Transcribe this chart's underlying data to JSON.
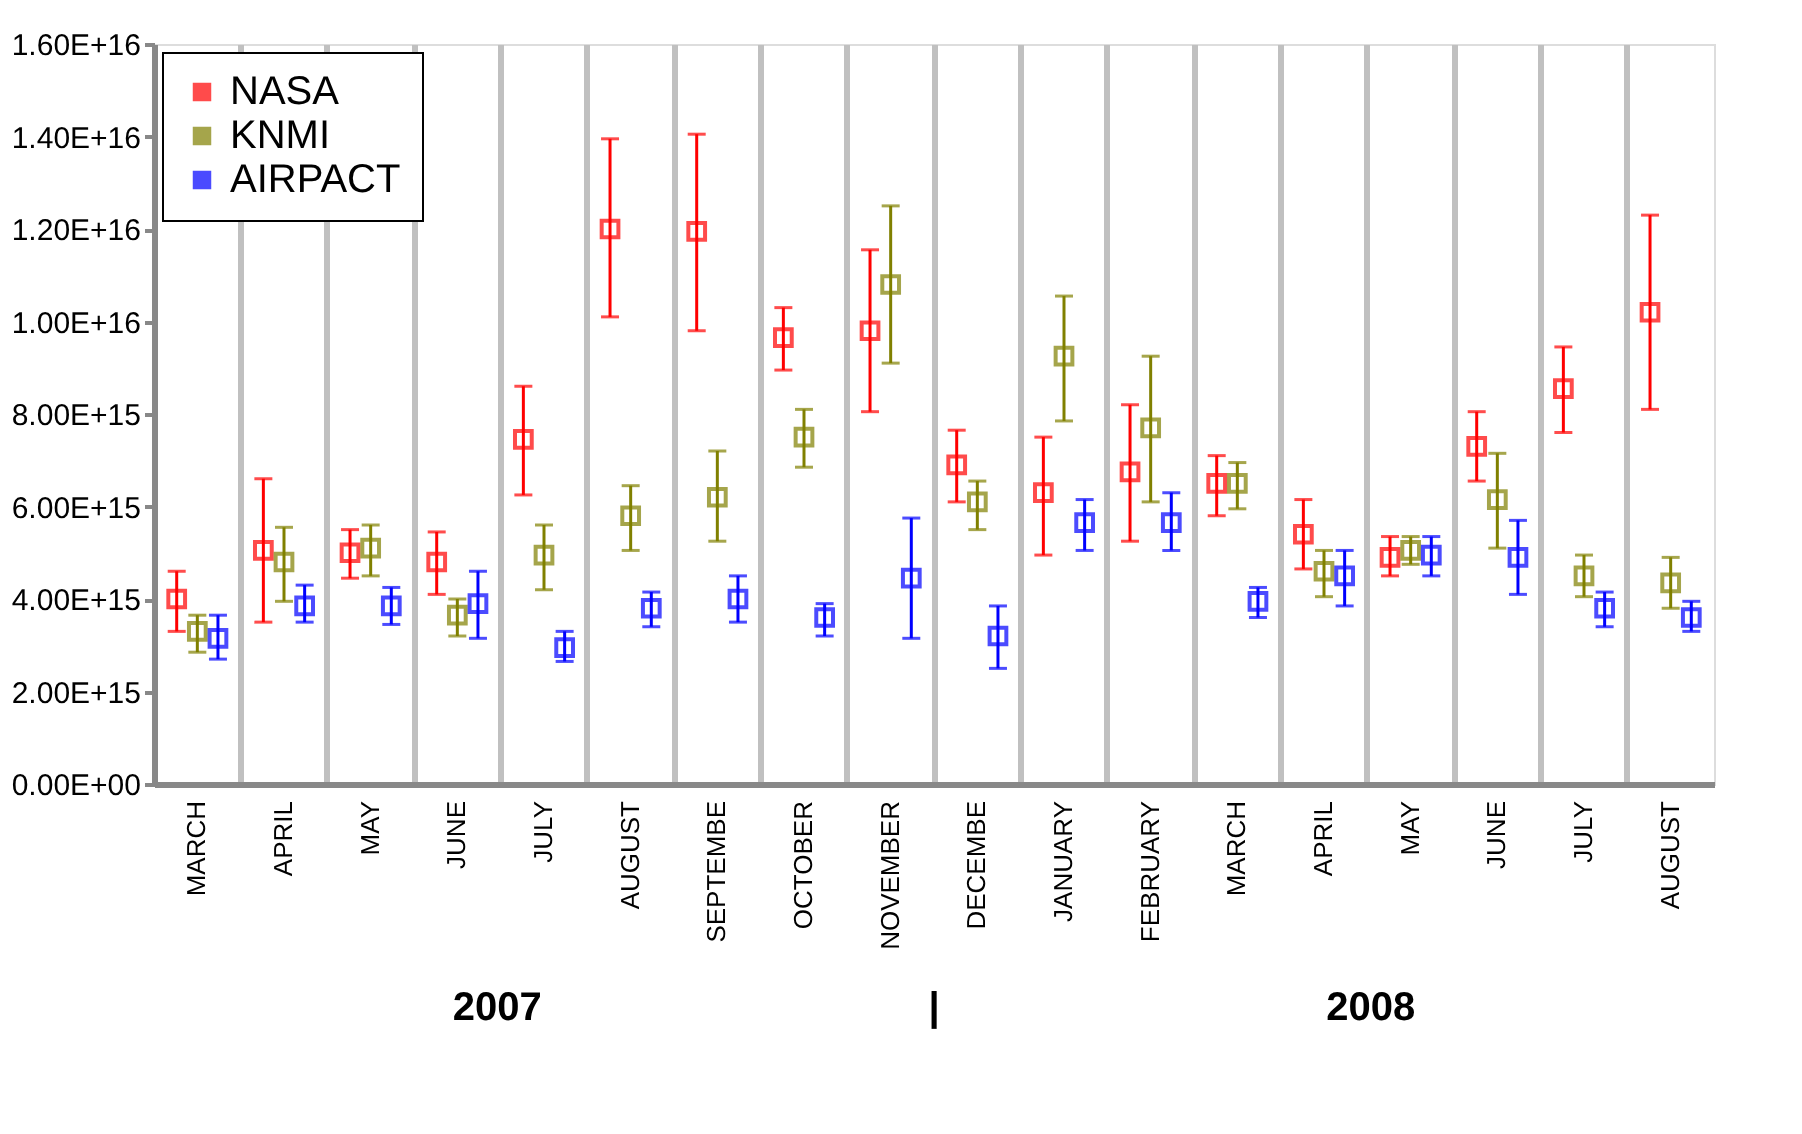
{
  "chart_data": {
    "type": "scatter",
    "categories": [
      "MARCH",
      "APRIL",
      "MAY",
      "JUNE",
      "JULY",
      "AUGUST",
      "SEPTEMBE",
      "OCTOBER",
      "NOVEMBER",
      "DECEMBE",
      "JANUARY",
      "FEBRUARY",
      "MARCH",
      "APRIL",
      "MAY",
      "JUNE",
      "JULY",
      "AUGUST"
    ],
    "series": [
      {
        "name": "NASA",
        "color": "#ff0000",
        "values": [
          4000000000000000.0,
          5050000000000000.0,
          5000000000000000.0,
          4800000000000000.0,
          7450000000000000.0,
          1.2e+16,
          1.195e+16,
          9650000000000000.0,
          9800000000000000.0,
          6900000000000000.0,
          6300000000000000.0,
          6750000000000000.0,
          6500000000000000.0,
          5400000000000000.0,
          4900000000000000.0,
          7300000000000000.0,
          8550000000000000.0,
          1.02e+16
        ],
        "errors": [
          [
            3300000000000000.0,
            4600000000000000.0
          ],
          [
            3500000000000000.0,
            6600000000000000.0
          ],
          [
            4450000000000000.0,
            5500000000000000.0
          ],
          [
            4100000000000000.0,
            5450000000000000.0
          ],
          [
            6250000000000000.0,
            8600000000000000.0
          ],
          [
            1.01e+16,
            1.395e+16
          ],
          [
            9800000000000000.0,
            1.405e+16
          ],
          [
            8950000000000000.0,
            1.03e+16
          ],
          [
            8050000000000000.0,
            1.155e+16
          ],
          [
            6100000000000000.0,
            7650000000000000.0
          ],
          [
            4950000000000000.0,
            7500000000000000.0
          ],
          [
            5250000000000000.0,
            8200000000000000.0
          ],
          [
            5800000000000000.0,
            7100000000000000.0
          ],
          [
            4650000000000000.0,
            6150000000000000.0
          ],
          [
            4500000000000000.0,
            5350000000000000.0
          ],
          [
            6550000000000000.0,
            8050000000000000.0
          ],
          [
            7600000000000000.0,
            9450000000000000.0
          ],
          [
            8100000000000000.0,
            1.23e+16
          ]
        ]
      },
      {
        "name": "KNMI",
        "color": "#808000",
        "values": [
          3300000000000000.0,
          4800000000000000.0,
          5100000000000000.0,
          3650000000000000.0,
          4950000000000000.0,
          5800000000000000.0,
          6200000000000000.0,
          7500000000000000.0,
          1.08e+16,
          6100000000000000.0,
          9250000000000000.0,
          7700000000000000.0,
          6500000000000000.0,
          4600000000000000.0,
          5050000000000000.0,
          6150000000000000.0,
          4500000000000000.0,
          4350000000000000.0
        ],
        "errors": [
          [
            2850000000000000.0,
            3650000000000000.0
          ],
          [
            3950000000000000.0,
            5550000000000000.0
          ],
          [
            4500000000000000.0,
            5600000000000000.0
          ],
          [
            3200000000000000.0,
            4000000000000000.0
          ],
          [
            4200000000000000.0,
            5600000000000000.0
          ],
          [
            5050000000000000.0,
            6450000000000000.0
          ],
          [
            5250000000000000.0,
            7200000000000000.0
          ],
          [
            6850000000000000.0,
            8100000000000000.0
          ],
          [
            9100000000000000.0,
            1.25e+16
          ],
          [
            5500000000000000.0,
            6550000000000000.0
          ],
          [
            7850000000000000.0,
            1.055e+16
          ],
          [
            6100000000000000.0,
            9250000000000000.0
          ],
          [
            5950000000000000.0,
            6950000000000000.0
          ],
          [
            4050000000000000.0,
            5050000000000000.0
          ],
          [
            4750000000000000.0,
            5350000000000000.0
          ],
          [
            5100000000000000.0,
            7150000000000000.0
          ],
          [
            4050000000000000.0,
            4950000000000000.0
          ],
          [
            3800000000000000.0,
            4900000000000000.0
          ]
        ]
      },
      {
        "name": "AIRPACT",
        "color": "#0000ff",
        "values": [
          3150000000000000.0,
          3850000000000000.0,
          3850000000000000.0,
          3900000000000000.0,
          2950000000000000.0,
          3800000000000000.0,
          4000000000000000.0,
          3600000000000000.0,
          4450000000000000.0,
          3200000000000000.0,
          5650000000000000.0,
          5650000000000000.0,
          3950000000000000.0,
          4500000000000000.0,
          4950000000000000.0,
          4900000000000000.0,
          3800000000000000.0,
          3600000000000000.0
        ],
        "errors": [
          [
            2700000000000000.0,
            3650000000000000.0
          ],
          [
            3500000000000000.0,
            4300000000000000.0
          ],
          [
            3450000000000000.0,
            4250000000000000.0
          ],
          [
            3150000000000000.0,
            4600000000000000.0
          ],
          [
            2650000000000000.0,
            3300000000000000.0
          ],
          [
            3400000000000000.0,
            4150000000000000.0
          ],
          [
            3500000000000000.0,
            4500000000000000.0
          ],
          [
            3200000000000000.0,
            3900000000000000.0
          ],
          [
            3150000000000000.0,
            5750000000000000.0
          ],
          [
            2500000000000000.0,
            3850000000000000.0
          ],
          [
            5050000000000000.0,
            6150000000000000.0
          ],
          [
            5050000000000000.0,
            6300000000000000.0
          ],
          [
            3600000000000000.0,
            4250000000000000.0
          ],
          [
            3850000000000000.0,
            5050000000000000.0
          ],
          [
            4500000000000000.0,
            5350000000000000.0
          ],
          [
            4100000000000000.0,
            5700000000000000.0
          ],
          [
            3400000000000000.0,
            4150000000000000.0
          ],
          [
            3300000000000000.0,
            3950000000000000.0
          ]
        ]
      }
    ],
    "ylim": [
      0,
      1.6e+16
    ],
    "yticks": [
      {
        "value": 0,
        "label": "0.00E+00"
      },
      {
        "value": 2000000000000000.0,
        "label": "2.00E+15"
      },
      {
        "value": 4000000000000000.0,
        "label": "4.00E+15"
      },
      {
        "value": 6000000000000000.0,
        "label": "6.00E+15"
      },
      {
        "value": 8000000000000000.0,
        "label": "8.00E+15"
      },
      {
        "value": 1e+16,
        "label": "1.00E+16"
      },
      {
        "value": 1.2e+16,
        "label": "1.20E+16"
      },
      {
        "value": 1.4e+16,
        "label": "1.40E+16"
      },
      {
        "value": 1.6e+16,
        "label": "1.60E+16"
      }
    ],
    "marker": "square",
    "grid": "x",
    "legend": "top left",
    "annotations": [
      "2007",
      "|",
      "2008"
    ]
  }
}
